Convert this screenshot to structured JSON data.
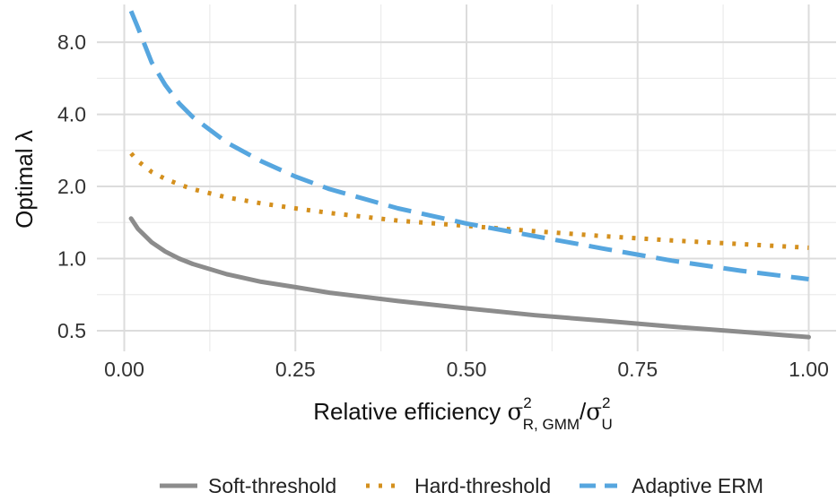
{
  "chart_data": {
    "type": "line",
    "xlabel": {
      "prefix": "Relative efficiency ",
      "num_symbol": "σ",
      "num_sup": "2",
      "num_sub": "R, GMM",
      "slash": "/",
      "den_symbol": "σ",
      "den_sup": "2",
      "den_sub": "U"
    },
    "ylabel": "Optimal λ",
    "y_scale": "log",
    "xlim": [
      -0.04,
      1.04
    ],
    "ylim": [
      0.41,
      11.5
    ],
    "x_ticks": [
      {
        "value": 0.0,
        "label": "0.00"
      },
      {
        "value": 0.25,
        "label": "0.25"
      },
      {
        "value": 0.5,
        "label": "0.50"
      },
      {
        "value": 0.75,
        "label": "0.75"
      },
      {
        "value": 1.0,
        "label": "1.00"
      }
    ],
    "y_ticks": [
      {
        "value": 0.5,
        "label": "0.5"
      },
      {
        "value": 1.0,
        "label": "1.0"
      },
      {
        "value": 2.0,
        "label": "2.0"
      },
      {
        "value": 4.0,
        "label": "4.0"
      },
      {
        "value": 8.0,
        "label": "8.0"
      }
    ],
    "grid": true,
    "legend_position": "bottom",
    "series": [
      {
        "name": "Soft-threshold",
        "color": "#8c8c8c",
        "style": "solid",
        "x": [
          0.01,
          0.02,
          0.04,
          0.06,
          0.08,
          0.1,
          0.15,
          0.2,
          0.25,
          0.3,
          0.4,
          0.5,
          0.6,
          0.7,
          0.8,
          0.9,
          1.0
        ],
        "y": [
          1.47,
          1.33,
          1.17,
          1.07,
          1.0,
          0.95,
          0.86,
          0.8,
          0.76,
          0.72,
          0.665,
          0.62,
          0.58,
          0.55,
          0.52,
          0.495,
          0.47
        ]
      },
      {
        "name": "Hard-threshold",
        "color": "#d4901e",
        "style": "dotted",
        "x": [
          0.01,
          0.02,
          0.04,
          0.06,
          0.08,
          0.1,
          0.15,
          0.2,
          0.25,
          0.3,
          0.4,
          0.5,
          0.6,
          0.7,
          0.8,
          0.9,
          1.0
        ],
        "y": [
          2.75,
          2.55,
          2.3,
          2.15,
          2.04,
          1.95,
          1.8,
          1.7,
          1.62,
          1.55,
          1.44,
          1.37,
          1.3,
          1.24,
          1.19,
          1.15,
          1.11
        ]
      },
      {
        "name": "Adaptive ERM",
        "color": "#56a6df",
        "style": "dashed",
        "x": [
          0.01,
          0.02,
          0.04,
          0.06,
          0.08,
          0.1,
          0.15,
          0.2,
          0.25,
          0.3,
          0.4,
          0.5,
          0.6,
          0.7,
          0.8,
          0.9,
          1.0
        ],
        "y": [
          10.8,
          9.2,
          6.6,
          5.3,
          4.45,
          3.9,
          3.05,
          2.55,
          2.2,
          1.95,
          1.62,
          1.4,
          1.24,
          1.1,
          0.98,
          0.89,
          0.82
        ]
      }
    ]
  }
}
